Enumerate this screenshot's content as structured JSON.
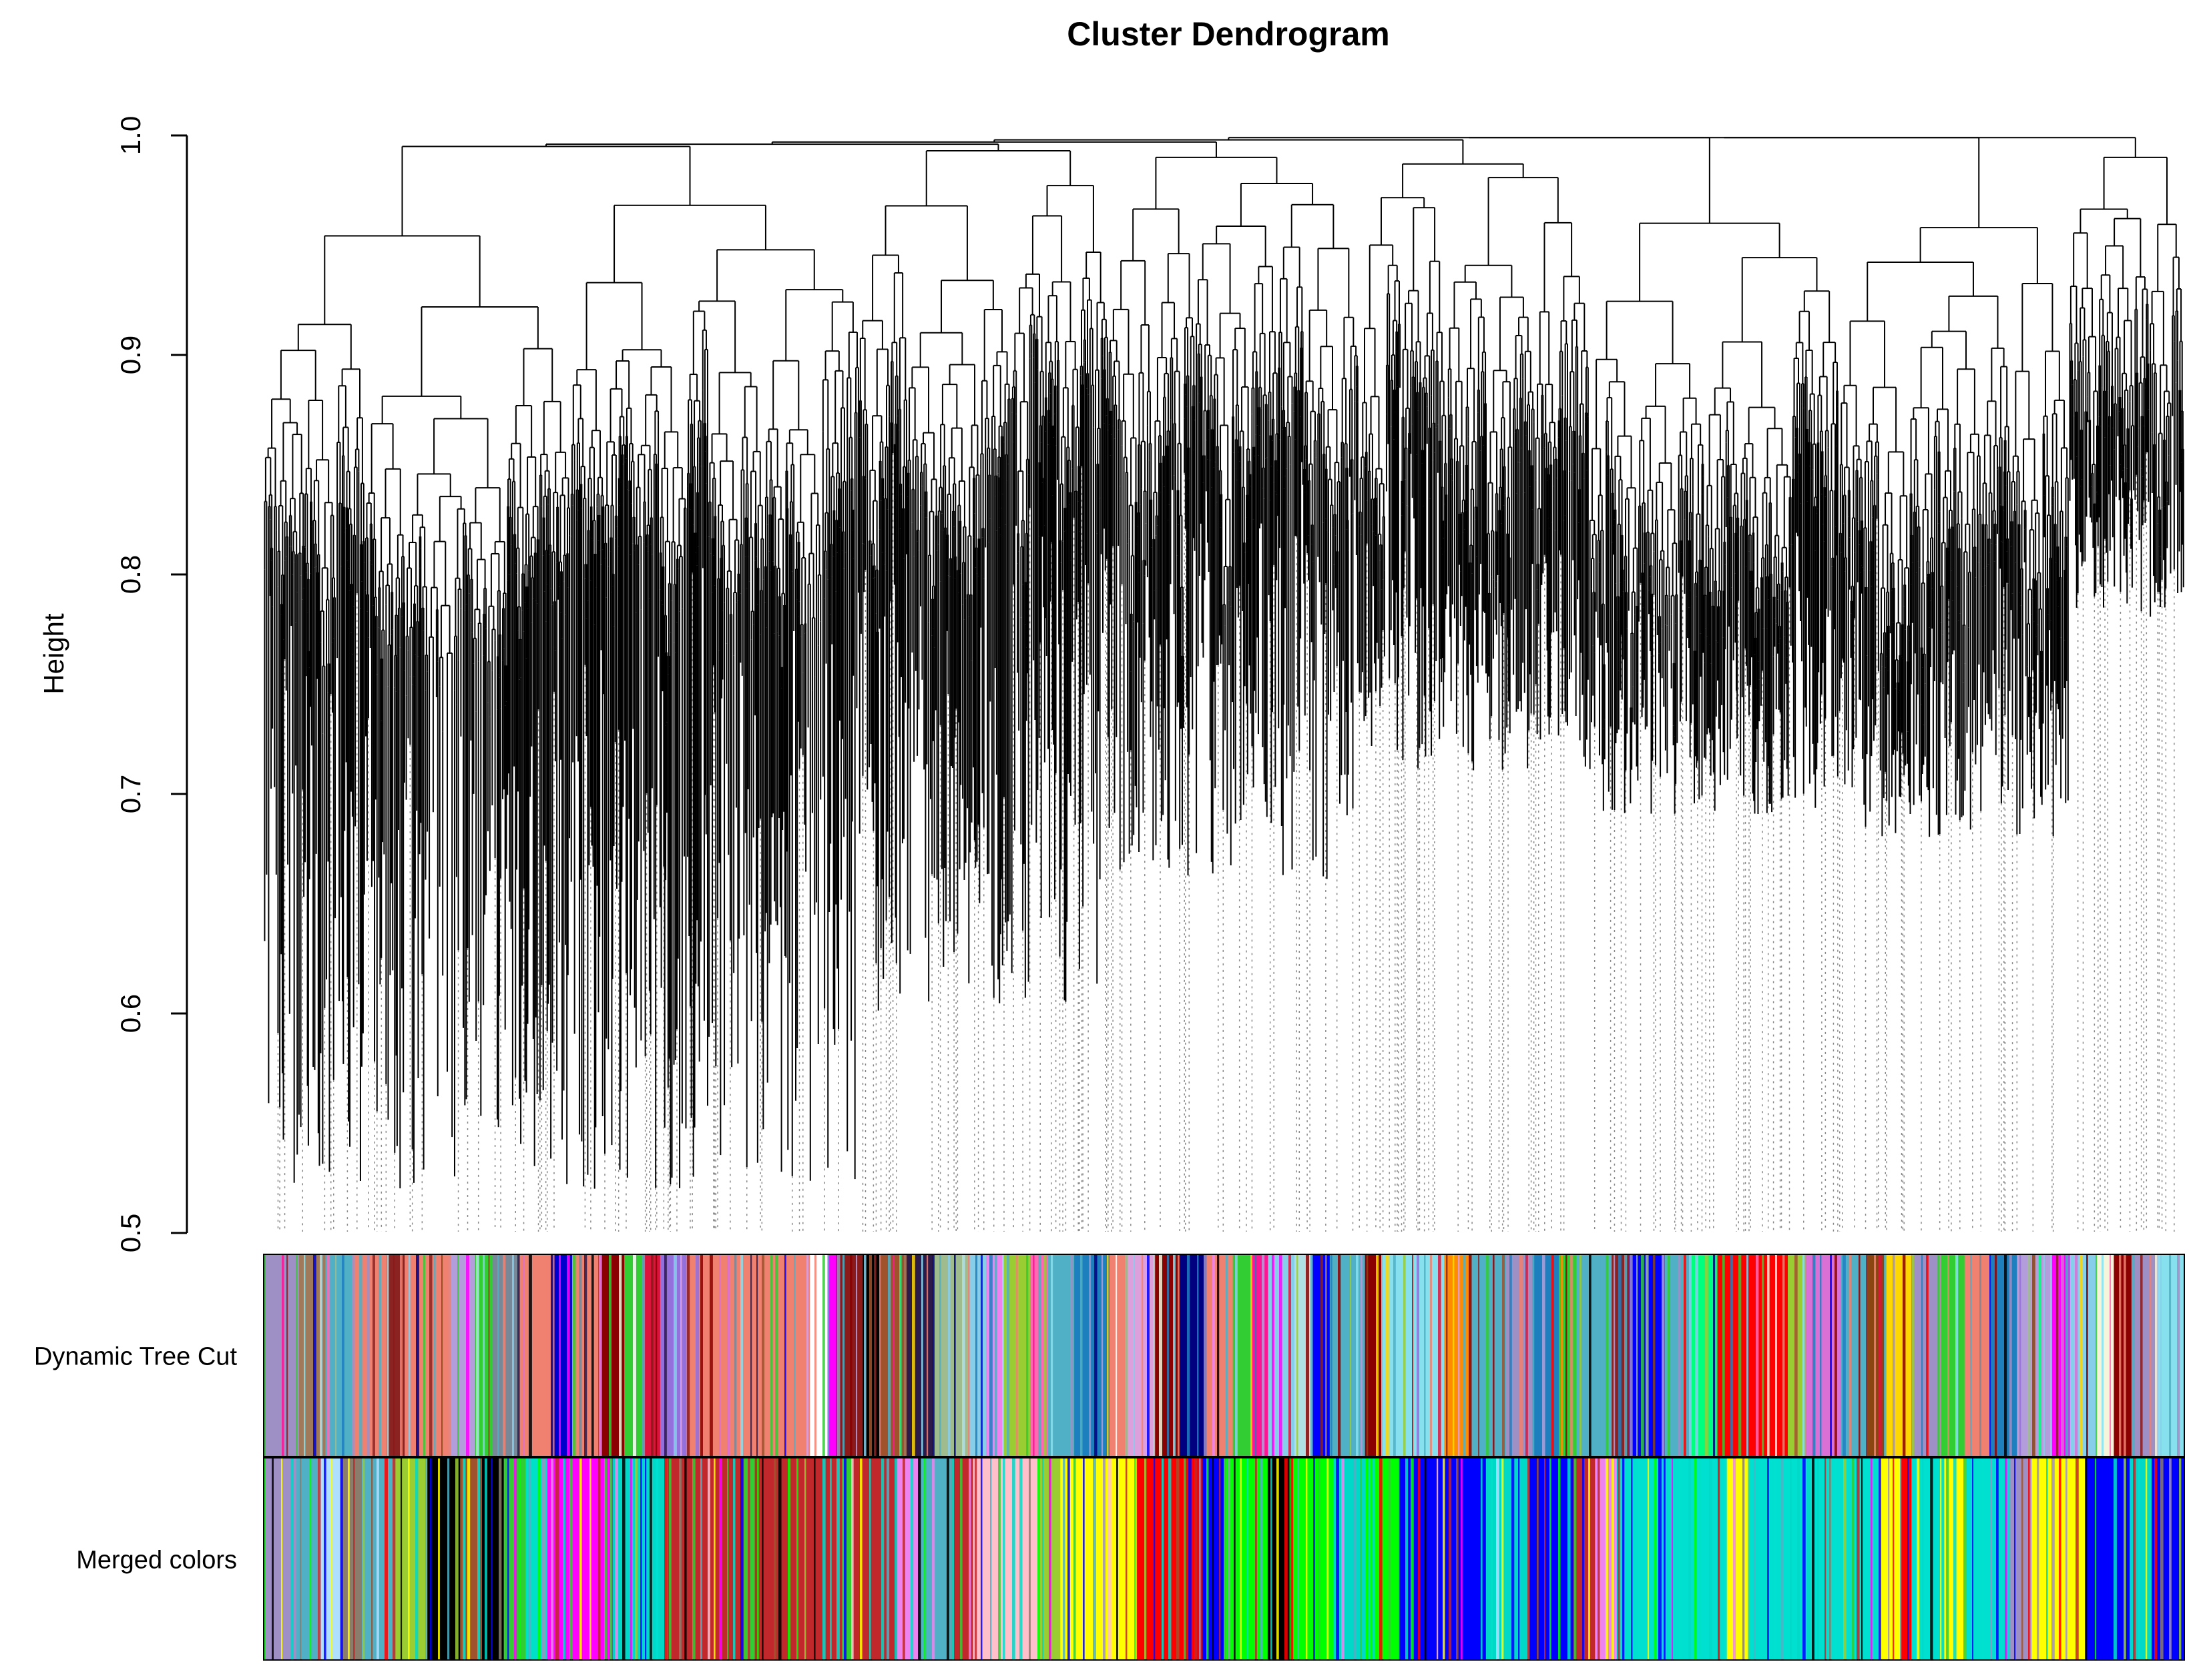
{
  "chart_data": {
    "type": "dendrogram",
    "title": "Cluster Dendrogram",
    "ylabel": "Height",
    "xlabel": "",
    "ylim": [
      0.5,
      1.0
    ],
    "y_ticks": [
      {
        "value": 0.5,
        "label": "0.5"
      },
      {
        "value": 0.6,
        "label": "0.6"
      },
      {
        "value": 0.7,
        "label": "0.7"
      },
      {
        "value": 0.8,
        "label": "0.8"
      },
      {
        "value": 0.9,
        "label": "0.9"
      },
      {
        "value": 1.0,
        "label": "1.0"
      }
    ],
    "top_merge_height": 0.995,
    "major_branches": [
      {
        "start": 0.0,
        "end": 0.31,
        "merge": 0.995,
        "min_leaf": 0.52
      },
      {
        "start": 0.31,
        "end": 0.44,
        "merge": 0.993,
        "min_leaf": 0.6
      },
      {
        "start": 0.44,
        "end": 0.57,
        "merge": 0.99,
        "min_leaf": 0.66
      },
      {
        "start": 0.57,
        "end": 0.69,
        "merge": 0.987,
        "min_leaf": 0.71
      },
      {
        "start": 0.69,
        "end": 0.82,
        "merge": 0.96,
        "min_leaf": 0.69
      },
      {
        "start": 0.82,
        "end": 0.94,
        "merge": 0.958,
        "min_leaf": 0.68
      },
      {
        "start": 0.94,
        "end": 1.0,
        "merge": 0.99,
        "min_leaf": 0.78
      }
    ],
    "color_rows": [
      {
        "label": "Dynamic Tree Cut",
        "segments": [
          {
            "color": "#9e8fc4",
            "w": 4
          },
          {
            "color": "#a0785a",
            "w": 3
          },
          {
            "color": "#4fb0c6",
            "w": 3
          },
          {
            "color": "#f08070",
            "w": 4
          },
          {
            "color": "#8b2323",
            "w": 2
          },
          {
            "color": "#f08070",
            "w": 5
          },
          {
            "color": "#b39ddb",
            "w": 3
          },
          {
            "color": "#32cd32",
            "w": 2
          },
          {
            "color": "#778899",
            "w": 3
          },
          {
            "color": "#f08070",
            "w": 4
          },
          {
            "color": "#0000cd",
            "w": 2
          },
          {
            "color": "#f08070",
            "w": 3
          },
          {
            "color": "#8b0000",
            "w": 3
          },
          {
            "color": "#32cd32",
            "w": 2
          },
          {
            "color": "#dc143c",
            "w": 2
          },
          {
            "color": "#9370db",
            "w": 3
          },
          {
            "color": "#f08070",
            "w": 14
          },
          {
            "color": "#ffffff",
            "w": 2
          },
          {
            "color": "#ff00ff",
            "w": 1
          },
          {
            "color": "#8b1a1a",
            "w": 3
          },
          {
            "color": "#000000",
            "w": 2
          },
          {
            "color": "#a0522d",
            "w": 3
          },
          {
            "color": "#2b1a4a",
            "w": 3
          },
          {
            "color": "#9fbc8f",
            "w": 4
          },
          {
            "color": "#87ceeb",
            "w": 2
          },
          {
            "color": "#ee82ee",
            "w": 2
          },
          {
            "color": "#9acd32",
            "w": 3
          },
          {
            "color": "#ff69b4",
            "w": 2
          },
          {
            "color": "#4fb0c6",
            "w": 3
          },
          {
            "color": "#1e7fbf",
            "w": 4
          },
          {
            "color": "#f08070",
            "w": 2
          },
          {
            "color": "#dda0dd",
            "w": 3
          },
          {
            "color": "#8b0000",
            "w": 3
          },
          {
            "color": "#000080",
            "w": 3
          },
          {
            "color": "#f08070",
            "w": 3
          },
          {
            "color": "#32cd32",
            "w": 2
          },
          {
            "color": "#ff1493",
            "w": 2
          },
          {
            "color": "#87ceeb",
            "w": 3
          },
          {
            "color": "#b0e0e6",
            "w": 2
          },
          {
            "color": "#0000ff",
            "w": 2
          },
          {
            "color": "#4fb0c6",
            "w": 4
          },
          {
            "color": "#8b0000",
            "w": 2
          },
          {
            "color": "#87e0ee",
            "w": 7
          },
          {
            "color": "#ff8c00",
            "w": 3
          },
          {
            "color": "#4fb0c6",
            "w": 4
          },
          {
            "color": "#9e8fc4",
            "w": 3
          },
          {
            "color": "#1e7fbf",
            "w": 3
          },
          {
            "color": "#32cd32",
            "w": 2
          },
          {
            "color": "#4fb0c6",
            "w": 4
          },
          {
            "color": "#8b2323",
            "w": 2
          },
          {
            "color": "#0000ff",
            "w": 4
          },
          {
            "color": "#4fb0c6",
            "w": 3
          },
          {
            "color": "#00ff7f",
            "w": 3
          },
          {
            "color": "#ff0000",
            "w": 8
          },
          {
            "color": "#9acd32",
            "w": 2
          },
          {
            "color": "#da70d6",
            "w": 4
          },
          {
            "color": "#4fb0c6",
            "w": 3
          },
          {
            "color": "#8b4513",
            "w": 2
          },
          {
            "color": "#ffd700",
            "w": 3
          },
          {
            "color": "#9e8fc4",
            "w": 3
          },
          {
            "color": "#32cd32",
            "w": 3
          },
          {
            "color": "#f08070",
            "w": 3
          },
          {
            "color": "#1e7fbf",
            "w": 3
          },
          {
            "color": "#b39ddb",
            "w": 4
          },
          {
            "color": "#ff00ff",
            "w": 2
          },
          {
            "color": "#87ceeb",
            "w": 3
          },
          {
            "color": "#f5f5dc",
            "w": 2
          },
          {
            "color": "#8b0000",
            "w": 2
          },
          {
            "color": "#9e8fc4",
            "w": 3
          },
          {
            "color": "#87e0ee",
            "w": 3
          }
        ]
      },
      {
        "label": "Merged colors",
        "segments": [
          {
            "color": "#9e8fc4",
            "w": 3
          },
          {
            "color": "#4fb0c6",
            "w": 2
          },
          {
            "color": "#b0e0ff",
            "w": 2
          },
          {
            "color": "#8b7d6b",
            "w": 2
          },
          {
            "color": "#4fb0c6",
            "w": 3
          },
          {
            "color": "#9acd32",
            "w": 3
          },
          {
            "color": "#000000",
            "w": 3
          },
          {
            "color": "#a0522d",
            "w": 2
          },
          {
            "color": "#000000",
            "w": 2
          },
          {
            "color": "#32cd32",
            "w": 2
          },
          {
            "color": "#00e0c8",
            "w": 2
          },
          {
            "color": "#ff00ff",
            "w": 6
          },
          {
            "color": "#00d8c8",
            "w": 5
          },
          {
            "color": "#c0282b",
            "w": 7
          },
          {
            "color": "#32cd32",
            "w": 1
          },
          {
            "color": "#c0282b",
            "w": 8
          },
          {
            "color": "#32cd32",
            "w": 1
          },
          {
            "color": "#c0282b",
            "w": 4
          },
          {
            "color": "#ee82ee",
            "w": 2
          },
          {
            "color": "#4fb0c6",
            "w": 3
          },
          {
            "color": "#c0282b",
            "w": 2
          },
          {
            "color": "#ffc0cb",
            "w": 6
          },
          {
            "color": "#9acd32",
            "w": 2
          },
          {
            "color": "#ffff00",
            "w": 7
          },
          {
            "color": "#ff0000",
            "w": 6
          },
          {
            "color": "#0000ff",
            "w": 2
          },
          {
            "color": "#00ff00",
            "w": 4
          },
          {
            "color": "#000000",
            "w": 2
          },
          {
            "color": "#00ff00",
            "w": 4
          },
          {
            "color": "#00d8c8",
            "w": 3
          },
          {
            "color": "#00ff00",
            "w": 3
          },
          {
            "color": "#0000ff",
            "w": 8
          },
          {
            "color": "#00d8c8",
            "w": 4
          },
          {
            "color": "#0000ff",
            "w": 4
          },
          {
            "color": "#c0282b",
            "w": 2
          },
          {
            "color": "#ee82ee",
            "w": 2
          },
          {
            "color": "#00e0d0",
            "w": 10
          },
          {
            "color": "#ffff00",
            "w": 2
          },
          {
            "color": "#00e0d0",
            "w": 12
          },
          {
            "color": "#ffff00",
            "w": 2
          },
          {
            "color": "#ff0000",
            "w": 1
          },
          {
            "color": "#00e0d0",
            "w": 3
          },
          {
            "color": "#ffff00",
            "w": 2
          },
          {
            "color": "#00e0d0",
            "w": 4
          },
          {
            "color": "#9e8fc4",
            "w": 2
          },
          {
            "color": "#ffff00",
            "w": 5
          },
          {
            "color": "#0000ff",
            "w": 4
          },
          {
            "color": "#00d8c8",
            "w": 2
          },
          {
            "color": "#0000ff",
            "w": 3
          }
        ]
      }
    ]
  }
}
